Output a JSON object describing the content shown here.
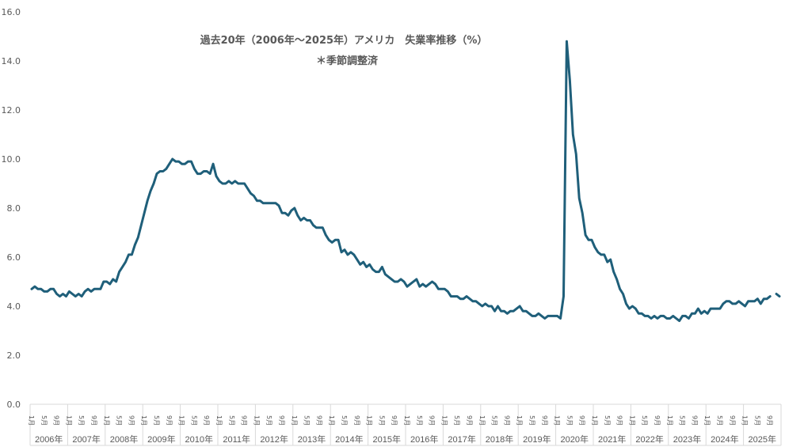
{
  "chart_data": {
    "type": "line",
    "title": "過去20年（2006年〜2025年）アメリカ　失業率推移（%）",
    "subtitle": "＊季節調整済",
    "xlabel": "",
    "ylabel": "",
    "ylim": [
      0,
      16
    ],
    "yticks": [
      "0.0",
      "2.0",
      "4.0",
      "6.0",
      "8.0",
      "10.0",
      "12.0",
      "14.0",
      "16.0"
    ],
    "years": [
      "2006年",
      "2007年",
      "2008年",
      "2009年",
      "2010年",
      "2011年",
      "2012年",
      "2013年",
      "2014年",
      "2015年",
      "2016年",
      "2017年",
      "2018年",
      "2019年",
      "2020年",
      "2021年",
      "2022年",
      "2023年",
      "2024年",
      "2025年"
    ],
    "month_labels": [
      "1月",
      "5月",
      "9月"
    ],
    "line_color": "#1f5f7a",
    "series": [
      {
        "start": "2006-01",
        "values": [
          4.7,
          4.8,
          4.7,
          4.7,
          4.6,
          4.6,
          4.7,
          4.7,
          4.5,
          4.4,
          4.5,
          4.4,
          4.6,
          4.5,
          4.4,
          4.5,
          4.4,
          4.6,
          4.7,
          4.6,
          4.7,
          4.7,
          4.7,
          5.0,
          5.0,
          4.9,
          5.1,
          5.0,
          5.4,
          5.6,
          5.8,
          6.1,
          6.1,
          6.5,
          6.8,
          7.3,
          7.8,
          8.3,
          8.7,
          9.0,
          9.4,
          9.5,
          9.5,
          9.6,
          9.8,
          10.0,
          9.9,
          9.9,
          9.8,
          9.8,
          9.9,
          9.9,
          9.6,
          9.4,
          9.4,
          9.5,
          9.5,
          9.4,
          9.8,
          9.3,
          9.1,
          9.0,
          9.0,
          9.1,
          9.0,
          9.1,
          9.0,
          9.0,
          9.0,
          8.8,
          8.6,
          8.5,
          8.3,
          8.3,
          8.2,
          8.2,
          8.2,
          8.2,
          8.2,
          8.1,
          7.8,
          7.8,
          7.7,
          7.9,
          8.0,
          7.7,
          7.5,
          7.6,
          7.5,
          7.5,
          7.3,
          7.2,
          7.2,
          7.2,
          6.9,
          6.7,
          6.6,
          6.7,
          6.7,
          6.2,
          6.3,
          6.1,
          6.2,
          6.1,
          5.9,
          5.7,
          5.8,
          5.6,
          5.7,
          5.5,
          5.4,
          5.4,
          5.6,
          5.3,
          5.2,
          5.1,
          5.0,
          5.0,
          5.1,
          5.0,
          4.8,
          4.9,
          5.0,
          5.1,
          4.8,
          4.9,
          4.8,
          4.9,
          5.0,
          4.9,
          4.7,
          4.7,
          4.7,
          4.6,
          4.4,
          4.4,
          4.4,
          4.3,
          4.3,
          4.4,
          4.3,
          4.2,
          4.2,
          4.1,
          4.0,
          4.1,
          4.0,
          4.0,
          3.8,
          4.0,
          3.8,
          3.8,
          3.7,
          3.8,
          3.8,
          3.9,
          4.0,
          3.8,
          3.8,
          3.7,
          3.6,
          3.6,
          3.7,
          3.6,
          3.5,
          3.6,
          3.6,
          3.6,
          3.6,
          3.5,
          4.4,
          14.8,
          13.2,
          11.0,
          10.2,
          8.4,
          7.8,
          6.9,
          6.7,
          6.7,
          6.4,
          6.2,
          6.1,
          6.1,
          5.8,
          5.9,
          5.4,
          5.1,
          4.7,
          4.5,
          4.1,
          3.9,
          4.0,
          3.9,
          3.7,
          3.7,
          3.6,
          3.6,
          3.5,
          3.6,
          3.5,
          3.6,
          3.6,
          3.5,
          3.5,
          3.6,
          3.5,
          3.4,
          3.6,
          3.6,
          3.5,
          3.7,
          3.7,
          3.9,
          3.7,
          3.8,
          3.7,
          3.9,
          3.9,
          3.9,
          3.9,
          4.1,
          4.2,
          4.2,
          4.1,
          4.1,
          4.2,
          4.1,
          4.0,
          4.2,
          4.2,
          4.2,
          4.3,
          4.1,
          4.3,
          4.3,
          4.4,
          null,
          4.5,
          4.4
        ]
      }
    ]
  }
}
